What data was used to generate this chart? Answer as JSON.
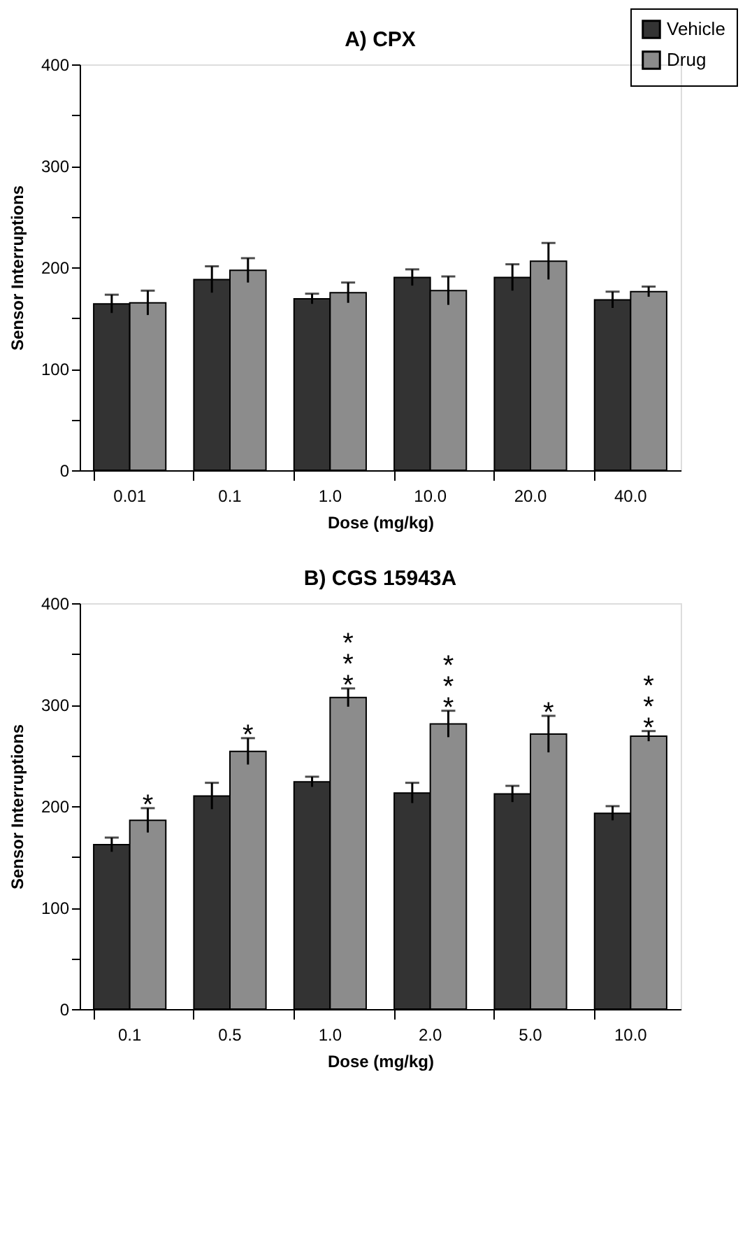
{
  "chart_data": [
    {
      "type": "bar",
      "title": "A) CPX",
      "xlabel": "Dose (mg/kg)",
      "ylabel": "Sensor Interruptions",
      "categories": [
        "0.01",
        "0.1",
        "1.0",
        "10.0",
        "20.0",
        "40.0"
      ],
      "series": [
        {
          "name": "Vehicle",
          "color": "#333333",
          "values": [
            164,
            188,
            169,
            190,
            190,
            168
          ],
          "errors": [
            9,
            13,
            5,
            8,
            13,
            8
          ]
        },
        {
          "name": "Drug",
          "color": "#8c8c8c",
          "values": [
            165,
            197,
            175,
            177,
            206,
            176
          ],
          "errors": [
            12,
            12,
            10,
            14,
            18,
            5
          ]
        }
      ],
      "ylim": [
        0,
        400
      ],
      "yticks": [
        0,
        {
          "value": 50,
          "label": null
        },
        100,
        {
          "value": 150,
          "label": null
        },
        200,
        {
          "value": 250,
          "label": null
        },
        300,
        {
          "value": 350,
          "label": null
        },
        400
      ],
      "grid": false,
      "legend": "top right"
    },
    {
      "type": "bar",
      "title": "B) CGS 15943A",
      "xlabel": "Dose (mg/kg)",
      "ylabel": "Sensor Interruptions",
      "categories": [
        "0.1",
        "0.5",
        "1.0",
        "2.0",
        "5.0",
        "10.0"
      ],
      "series": [
        {
          "name": "Vehicle",
          "color": "#333333",
          "values": [
            162,
            210,
            224,
            213,
            212,
            193
          ],
          "errors": [
            7,
            13,
            5,
            10,
            8,
            7
          ]
        },
        {
          "name": "Drug",
          "color": "#8c8c8c",
          "values": [
            186,
            254,
            307,
            281,
            271,
            269
          ],
          "errors": [
            12,
            13,
            9,
            13,
            18,
            5
          ]
        }
      ],
      "ylim": [
        0,
        400
      ],
      "yticks": [
        0,
        {
          "value": 50,
          "label": null
        },
        100,
        {
          "value": 150,
          "label": null
        },
        200,
        {
          "value": 250,
          "label": null
        },
        300,
        {
          "value": 350,
          "label": null
        },
        400
      ],
      "grid": false,
      "legend": false,
      "annotations": [
        "*",
        "*",
        "***",
        "***",
        "*",
        "***"
      ]
    }
  ]
}
